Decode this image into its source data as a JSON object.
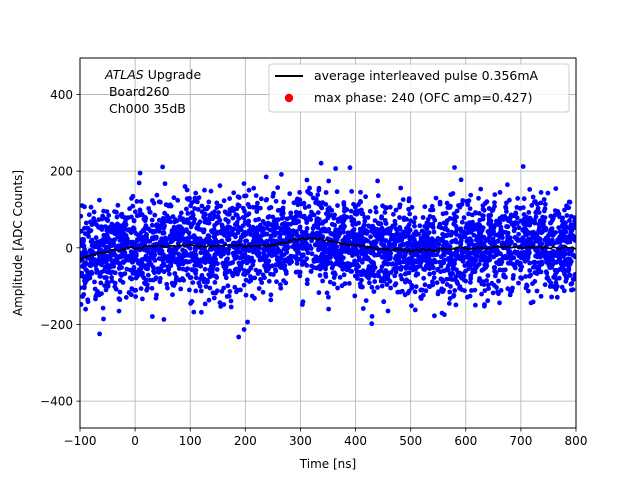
{
  "chart_data": {
    "type": "scatter",
    "xlabel": "Time [ns]",
    "ylabel": "Amplitude [ADC Counts]",
    "xlim": [
      -100,
      800
    ],
    "ylim": [
      -470,
      495
    ],
    "xticks": [
      -100,
      0,
      100,
      200,
      300,
      400,
      500,
      600,
      700,
      800
    ],
    "yticks": [
      -400,
      -200,
      0,
      200,
      400
    ],
    "grid": true,
    "legend_position": "top-right",
    "annotation": {
      "experiment": "ATLAS",
      "experiment_suffix": " Upgrade",
      "lines": [
        " Board260",
        " Ch000 35dB"
      ]
    },
    "series": [
      {
        "name": "average interleaved pulse 0.356mA",
        "kind": "line",
        "color": "#000000",
        "x": [
          -100,
          -80,
          -60,
          -40,
          -20,
          0,
          20,
          40,
          60,
          80,
          100,
          120,
          140,
          160,
          180,
          200,
          220,
          240,
          260,
          280,
          300,
          320,
          340,
          360,
          380,
          400,
          420,
          440,
          460,
          480,
          500,
          520,
          540,
          560,
          580,
          600,
          620,
          640,
          660,
          680,
          700,
          720,
          740,
          760,
          780,
          800
        ],
        "y": [
          -30,
          -20,
          -12,
          -6,
          -3,
          0,
          2,
          3,
          4,
          5,
          6,
          5,
          4,
          5,
          6,
          5,
          4,
          5,
          10,
          18,
          24,
          25,
          22,
          16,
          10,
          6,
          2,
          -2,
          -4,
          -6,
          -7,
          -6,
          -5,
          -4,
          -2,
          -1,
          0,
          1,
          2,
          2,
          1,
          1,
          0,
          0,
          1,
          1
        ]
      },
      {
        "name": "max phase: 240 (OFC amp=0.427)",
        "kind": "scatter",
        "color": "#ff0000",
        "points": []
      },
      {
        "name": "",
        "kind": "samples",
        "color": "#0000ff",
        "x_range": [
          -100,
          800
        ],
        "typical_spread": [
          -110,
          110
        ],
        "extreme_range": [
          -300,
          315
        ]
      }
    ]
  }
}
